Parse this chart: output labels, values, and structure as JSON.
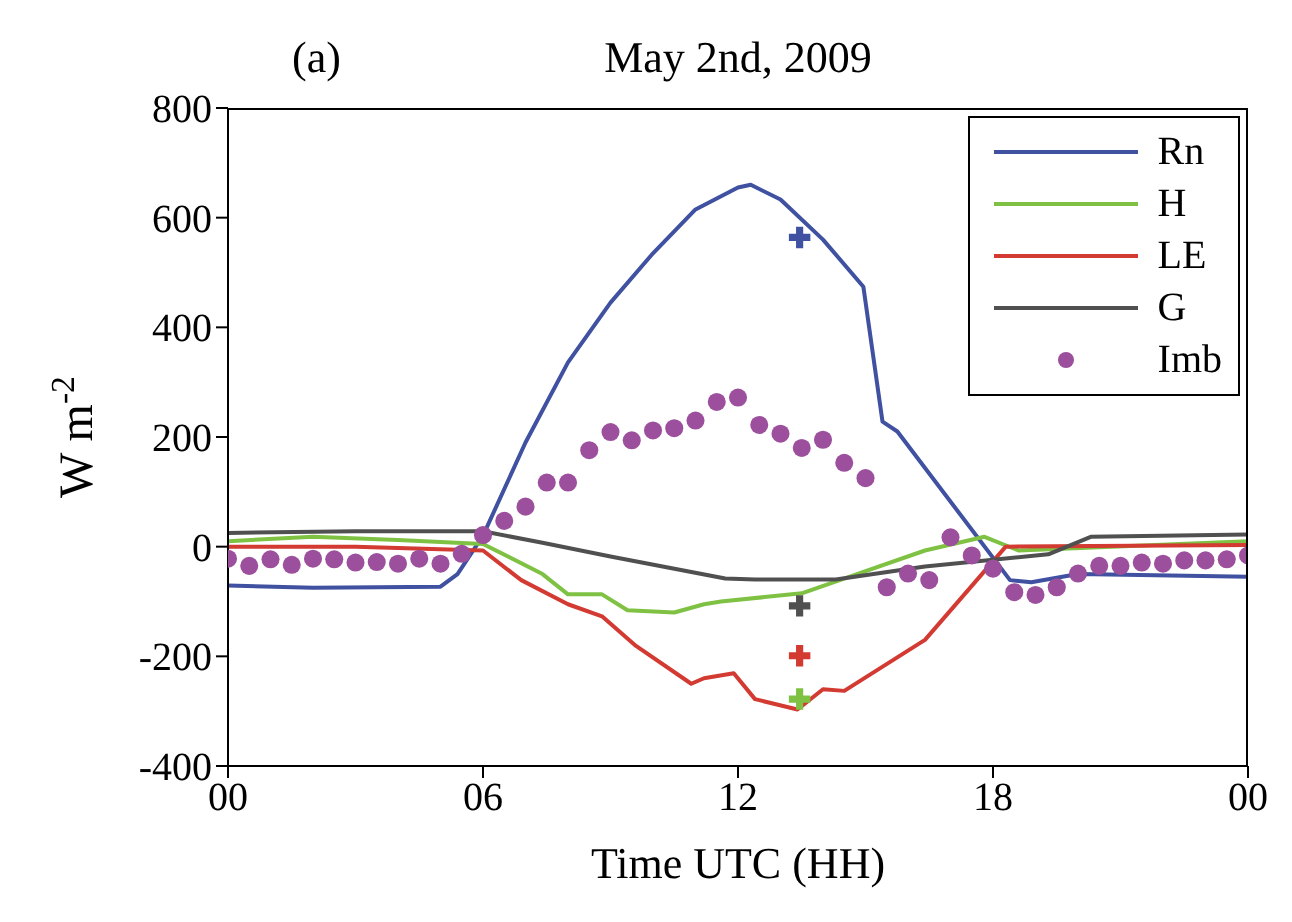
{
  "chart_data": {
    "type": "line",
    "title": "May 2nd, 2009",
    "annotations": [
      "(a)"
    ],
    "xlabel": "Time UTC (HH)",
    "ylabel": "W m$^{-2}$",
    "xlim": [
      0,
      24
    ],
    "xticks": [
      {
        "value": 0,
        "label": "00"
      },
      {
        "value": 6,
        "label": "06"
      },
      {
        "value": 12,
        "label": "12"
      },
      {
        "value": 18,
        "label": "18"
      },
      {
        "value": 24,
        "label": "00"
      }
    ],
    "ylim": [
      -400,
      800
    ],
    "yticks": [
      -400,
      -200,
      0,
      200,
      400,
      600,
      800
    ],
    "grid": false,
    "legend": "top right",
    "line_style": "solid",
    "series": [
      {
        "name": "Rn",
        "color": "#3f51a0",
        "marker": "none",
        "x": [
          0,
          2,
          5,
          5.4,
          6,
          7,
          8,
          9,
          10,
          11,
          12,
          12.3,
          13,
          14,
          14.95,
          15.4,
          15.75,
          18.4,
          18.9,
          20,
          24
        ],
        "values": [
          -71,
          -75,
          -73,
          -50,
          20,
          190,
          336,
          445,
          535,
          615,
          655,
          660,
          633,
          560,
          474,
          228,
          210,
          -61,
          -65,
          -50,
          -55
        ]
      },
      {
        "name": "H",
        "color": "#7fc243",
        "marker": "none",
        "x": [
          0,
          2,
          4,
          6,
          7.4,
          8,
          8.8,
          9.4,
          10.5,
          11.2,
          11.6,
          13.5,
          14.8,
          16.4,
          17.8,
          18.6,
          24
        ],
        "values": [
          10,
          18,
          12,
          5,
          -50,
          -87,
          -87,
          -116,
          -120,
          -105,
          -100,
          -85,
          -50,
          -7,
          18,
          -7,
          10
        ]
      },
      {
        "name": "LE",
        "color": "#d23a32",
        "marker": "none",
        "x": [
          0,
          3,
          6,
          6.9,
          8,
          8.8,
          9.6,
          10.9,
          11.2,
          11.9,
          12.4,
          13.4,
          14,
          14.5,
          16.4,
          18.3,
          24
        ],
        "values": [
          0,
          0,
          -7,
          -61,
          -105,
          -127,
          -181,
          -250,
          -240,
          -231,
          -278,
          -297,
          -260,
          -263,
          -170,
          0,
          3
        ]
      },
      {
        "name": "G",
        "color": "#505050",
        "marker": "none",
        "x": [
          0,
          3,
          6,
          7.4,
          9,
          11.7,
          12.4,
          14.3,
          16.4,
          19.3,
          20.3,
          24
        ],
        "values": [
          25,
          28,
          28,
          7,
          -18,
          -58,
          -60,
          -60,
          -36,
          -14,
          18,
          22
        ]
      },
      {
        "name": "Imb",
        "color": "#9c4f9c",
        "type": "scatter",
        "marker": "circle",
        "x": [
          0,
          0.5,
          1,
          1.5,
          2,
          2.5,
          3,
          3.5,
          4,
          4.5,
          5,
          5.5,
          6,
          6.5,
          7,
          7.5,
          8,
          8.5,
          9,
          9.5,
          10,
          10.5,
          11,
          11.5,
          12,
          12.5,
          13,
          13.5,
          14,
          14.5,
          15,
          15.5,
          16,
          16.5,
          17,
          17.5,
          18,
          18.5,
          19,
          19.5,
          20,
          20.5,
          21,
          21.5,
          22,
          22.5,
          23,
          23.5,
          24
        ],
        "values": [
          -22,
          -35,
          -23,
          -33,
          -22,
          -23,
          -29,
          -28,
          -31,
          -22,
          -31,
          -13,
          21,
          47,
          73,
          117,
          117,
          176,
          209,
          194,
          212,
          216,
          230,
          264,
          272,
          222,
          206,
          180,
          195,
          153,
          125,
          -74,
          -49,
          -61,
          17,
          -16,
          -40,
          -83,
          -88,
          -74,
          -49,
          -35,
          -35,
          -29,
          -31,
          -25,
          -25,
          -23,
          -16
        ]
      },
      {
        "color": "#3f51a0",
        "type": "scatter",
        "marker": "cross",
        "x": [
          13.45
        ],
        "values": [
          564
        ]
      },
      {
        "color": "#505050",
        "type": "scatter",
        "marker": "cross",
        "x": [
          13.45
        ],
        "values": [
          -108
        ]
      },
      {
        "color": "#d23a32",
        "type": "scatter",
        "marker": "cross",
        "x": [
          13.45
        ],
        "values": [
          -199
        ]
      },
      {
        "color": "#7fc243",
        "type": "scatter",
        "marker": "cross",
        "x": [
          13.45
        ],
        "values": [
          -278
        ]
      }
    ]
  }
}
